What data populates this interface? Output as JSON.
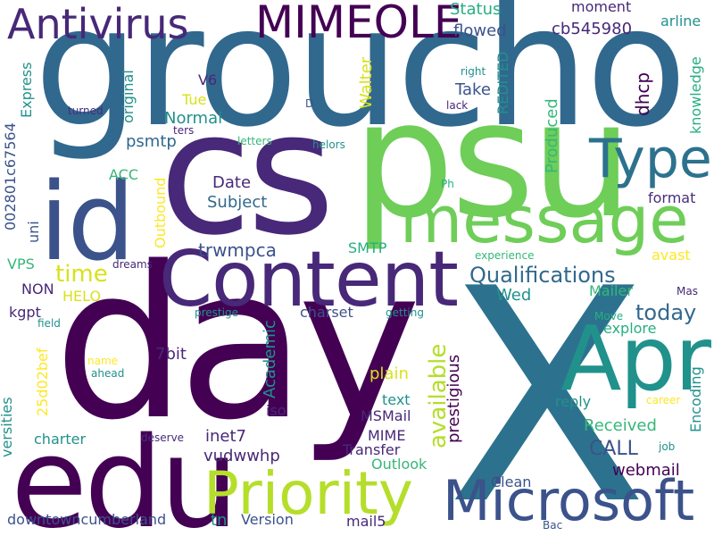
{
  "words": {
    "groucho": "groucho",
    "cs": "cs",
    "psu": "psu",
    "day": "day",
    "x": "X",
    "edu": "edu",
    "id": "id",
    "content": "Content",
    "message": "message",
    "apr": "Apr",
    "type": "Type",
    "priority": "Priority",
    "microsoft": "Microsoft",
    "antivirus": "Antivirus",
    "mimeole": "MIMEOLE",
    "qualifications": "Qualifications",
    "today": "today",
    "available": "available",
    "time": "time",
    "date": "Date",
    "subject": "Subject",
    "trwmpca": "trwmpca",
    "psmtp": "psmtp",
    "normal": "Normal",
    "v6": "V6",
    "tue": "Tue",
    "acc": "ACC",
    "status": "Status",
    "flowed": "flowed",
    "moment": "moment",
    "cb545980": "cb545980",
    "arline": "arline",
    "take": "Take",
    "dhcp": "dhcp",
    "produced": "Produced",
    "knowledge": "knowledge",
    "reddited": "REDITED",
    "walter": "Walter",
    "original": "original",
    "express": "Express",
    "hex_id": "002801c67564",
    "turned": "turned",
    "ters": "ters",
    "letters": "letters",
    "helors": "helors",
    "right": "right",
    "lack": "lack",
    "d": "D",
    "ph": "Ph",
    "format": "format",
    "experience": "experience",
    "avast": "avast",
    "outbound": "Outbound",
    "smtp": "SMTP",
    "vps": "VPS",
    "dreams": "dreams",
    "uni": "uni",
    "non": "NON",
    "helo": "HELO",
    "kgpt": "kgpt",
    "prestige": "prestige",
    "charset": "charset",
    "getting": "getting",
    "field": "field",
    "mailer": "Mailer",
    "mas": "Mas",
    "wed": "Wed",
    "move": "Move",
    "explore": "explore",
    "academic": "Academic",
    "seven_bit": "7bit",
    "prestigious": "prestigious",
    "name": "name",
    "ahead": "ahead",
    "plain": "plain",
    "versities": "versities",
    "hash": "25d02bef",
    "text": "text",
    "iso": "iso",
    "reply": "reply",
    "encoding": "Encoding",
    "career": "career",
    "msmail": "MSMail",
    "received": "Received",
    "charter": "charter",
    "deserve": "deserve",
    "inet7": "inet7",
    "mime": "MIME",
    "call": "CALL",
    "job": "job",
    "transfer": "Transfer",
    "vudwwhp": "vudwwhp",
    "outlook": "Outlook",
    "webmail": "webmail",
    "clean": "Clean",
    "downtown": "downtowncumberland",
    "tn": "tn",
    "version": "Version",
    "mail5": "mail5",
    "bac": "Bac"
  }
}
